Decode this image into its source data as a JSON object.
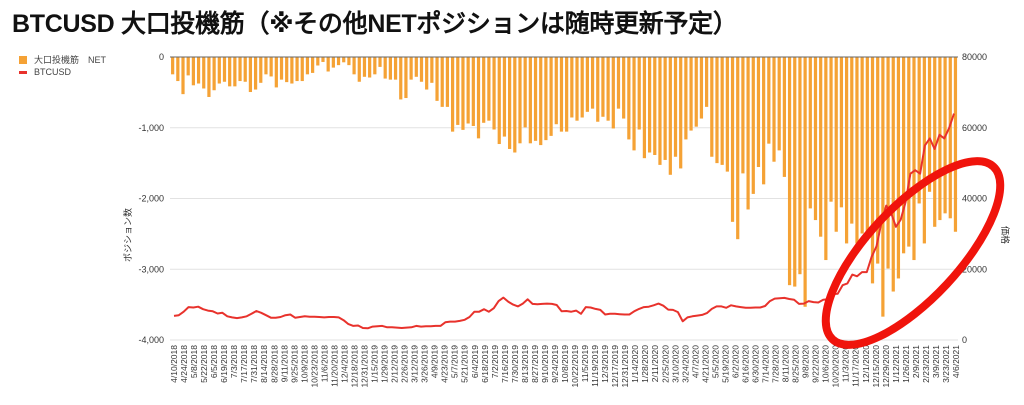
{
  "chart_data": {
    "type": "bar+line",
    "title": "BTCUSD 大口投機筋（※その他NETポジションは随時更新予定）",
    "legend": [
      "大口投機筋　NET",
      "BTCUSD"
    ],
    "legend_position": "top-left",
    "ylabel_left": "ポジション数",
    "ylabel_right": "価格",
    "ylim_left": [
      -4000,
      0
    ],
    "ylim_right": [
      0,
      80000
    ],
    "yticks_left": [
      "0",
      "-1,000",
      "-2,000",
      "-3,000",
      "-4,000"
    ],
    "yticks_right": [
      "80000",
      "60000",
      "40000",
      "20000",
      "0"
    ],
    "grid": true,
    "x_tick_labels": [
      "4/10/2018",
      "4/24/2018",
      "5/8/2018",
      "5/22/2018",
      "6/5/2018",
      "6/19/2018",
      "7/3/2018",
      "7/17/2018",
      "7/31/2018",
      "8/14/2018",
      "8/28/2018",
      "9/11/2018",
      "9/25/2018",
      "10/9/2018",
      "10/23/2018",
      "11/6/2018",
      "11/20/2018",
      "12/4/2018",
      "12/18/2018",
      "12/31/2018",
      "1/15/2019",
      "1/29/2019",
      "2/12/2019",
      "2/26/2019",
      "3/12/2019",
      "3/26/2019",
      "4/9/2019",
      "4/23/2019",
      "5/7/2019",
      "5/21/2019",
      "6/4/2019",
      "6/18/2019",
      "7/2/2019",
      "7/16/2019",
      "7/30/2019",
      "8/13/2019",
      "8/27/2019",
      "9/10/2019",
      "9/24/2019",
      "10/8/2019",
      "10/22/2019",
      "11/5/2019",
      "11/19/2019",
      "12/3/2019",
      "12/17/2019",
      "12/31/2019",
      "1/14/2020",
      "1/28/2020",
      "2/11/2020",
      "2/25/2020",
      "3/10/2020",
      "3/24/2020",
      "4/7/2020",
      "4/21/2020",
      "5/5/2020",
      "5/19/2020",
      "6/2/2020",
      "6/16/2020",
      "6/30/2020",
      "7/14/2020",
      "7/28/2020",
      "8/11/2020",
      "8/25/2020",
      "9/8/2020",
      "9/22/2020",
      "10/6/2020",
      "10/20/2020",
      "11/3/2020",
      "11/17/2020",
      "12/1/2020",
      "12/15/2020",
      "12/29/2020",
      "1/12/2021",
      "1/26/2021",
      "2/9/2021",
      "2/23/2021",
      "3/9/2021",
      "3/23/2021",
      "4/6/2021"
    ],
    "series": [
      {
        "name": "大口投機筋　NET",
        "type": "bar",
        "color": "#f5a235",
        "values": [
          -245,
          -340,
          -525,
          -260,
          -400,
          -375,
          -445,
          -565,
          -470,
          -375,
          -350,
          -415,
          -415,
          -340,
          -350,
          -495,
          -460,
          -365,
          -245,
          -275,
          -430,
          -320,
          -355,
          -375,
          -340,
          -340,
          -245,
          -225,
          -120,
          -70,
          -205,
          -150,
          -115,
          -75,
          -115,
          -245,
          -350,
          -280,
          -290,
          -245,
          -140,
          -305,
          -320,
          -320,
          -600,
          -580,
          -320,
          -280,
          -350,
          -460,
          -365,
          -620,
          -705,
          -705,
          -1055,
          -960,
          -1030,
          -940,
          -975,
          -1150,
          -930,
          -900,
          -1025,
          -1230,
          -1125,
          -1300,
          -1350,
          -1220,
          -995,
          -1220,
          -1185,
          -1245,
          -1175,
          -1115,
          -950,
          -1055,
          -1055,
          -855,
          -900,
          -855,
          -775,
          -730,
          -915,
          -845,
          -900,
          -1010,
          -730,
          -870,
          -1165,
          -1320,
          -1025,
          -1430,
          -1350,
          -1385,
          -1525,
          -1455,
          -1665,
          -1410,
          -1575,
          -1165,
          -1040,
          -985,
          -870,
          -705,
          -1410,
          -1500,
          -1525,
          -1620,
          -2330,
          -2575,
          -1645,
          -2155,
          -1935,
          -1555,
          -1800,
          -1225,
          -1480,
          -1320,
          -1695,
          -3225,
          -3245,
          -3070,
          -3530,
          -2140,
          -2305,
          -2540,
          -2870,
          -2045,
          -2470,
          -2125,
          -2635,
          -2355,
          -2635,
          -2495,
          -2590,
          -3200,
          -2920,
          -3670,
          -2990,
          -3315,
          -3130,
          -2775,
          -2680,
          -2870,
          -2070,
          -2635,
          -1905,
          -2400,
          -2305,
          -2210,
          -2280,
          -2470
        ]
      },
      {
        "name": "BTCUSD",
        "type": "line",
        "color": "#e8322c",
        "values": [
          6800,
          7000,
          8000,
          9300,
          9200,
          9400,
          8700,
          8300,
          8100,
          7500,
          7700,
          6700,
          6400,
          6200,
          6400,
          6700,
          7400,
          8200,
          7700,
          7000,
          6300,
          6300,
          6500,
          7000,
          7200,
          6300,
          6500,
          6700,
          6600,
          6600,
          6500,
          6400,
          6500,
          6500,
          6400,
          5600,
          4500,
          4000,
          4100,
          3400,
          3300,
          3800,
          3900,
          4000,
          3600,
          3600,
          3500,
          3400,
          3500,
          3600,
          4000,
          3800,
          3900,
          3900,
          4000,
          4000,
          5000,
          5200,
          5200,
          5400,
          5700,
          6500,
          8000,
          8000,
          8700,
          8000,
          9000,
          11000,
          12000,
          10800,
          10000,
          9500,
          10300,
          11500,
          10200,
          10100,
          10200,
          10300,
          10200,
          9900,
          8100,
          8200,
          8000,
          8300,
          7400,
          9300,
          9200,
          8800,
          8500,
          7200,
          7400,
          7400,
          7300,
          7200,
          7200,
          8100,
          8800,
          9300,
          9400,
          9800,
          10300,
          9700,
          8600,
          8500,
          7900,
          5300,
          6400,
          6700,
          6900,
          7100,
          7600,
          8800,
          9500,
          9500,
          9100,
          9800,
          9500,
          9300,
          9100,
          9100,
          9200,
          9200,
          9600,
          11000,
          11700,
          11800,
          11900,
          11600,
          11400,
          10200,
          10300,
          11000,
          10700,
          10600,
          11400,
          11500,
          13000,
          13100,
          15500,
          16000,
          18500,
          18000,
          19200,
          19200,
          23500,
          26500,
          33000,
          38000,
          36000,
          32000,
          34000,
          39000,
          47000,
          48000,
          47000,
          55000,
          57000,
          54000,
          58000,
          57000,
          60000,
          64000
        ]
      }
    ],
    "annotation": "red hand-drawn ellipse around late-2020 to 2021 price rise"
  }
}
